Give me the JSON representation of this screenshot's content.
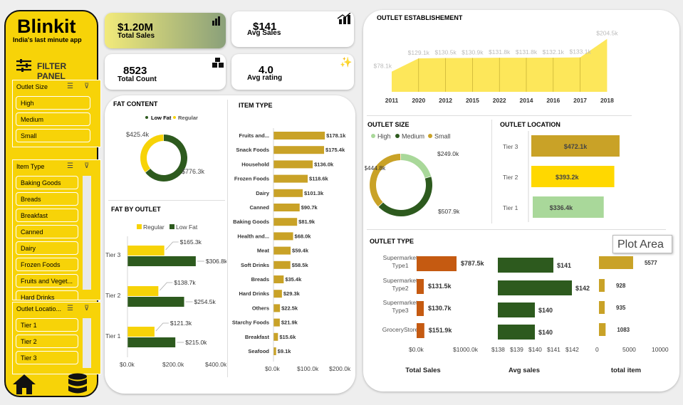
{
  "brand": {
    "name": "Blinkit",
    "tagline": "India's last minute app",
    "filter_panel": "FILTER PANEL"
  },
  "slicers": {
    "outlet_size": {
      "title": "Outlet Size",
      "items": [
        "High",
        "Medium",
        "Small"
      ]
    },
    "item_type": {
      "title": "Item Type",
      "items": [
        "Baking Goods",
        "Breads",
        "Breakfast",
        "Canned",
        "Dairy",
        "Frozen Foods",
        "Fruits and Veget...",
        "Hard Drinks"
      ]
    },
    "outlet_location": {
      "title": "Outlet Locatio...",
      "items": [
        "Tier 1",
        "Tier 2",
        "Tier 3"
      ]
    }
  },
  "kpis": {
    "total_sales": {
      "value": "$1.20M",
      "label": "Total Sales"
    },
    "avg_sales": {
      "value": "$141",
      "label": "Avg Sales"
    },
    "total_count": {
      "value": "8523",
      "label": "Total Count"
    },
    "avg_rating": {
      "value": "4.0",
      "label": "Avg rating"
    }
  },
  "tooltip": "Plot Area",
  "colors": {
    "yellow": "#f7d308",
    "dark_green": "#2d5a1e",
    "gold": "#c9a227",
    "orange": "#c55a11",
    "light_green": "#a9d89a",
    "bar_yellow": "#ffd800"
  },
  "chart_data": [
    {
      "id": "fat_content",
      "type": "pie",
      "title": "FAT CONTENT",
      "legend": [
        "Low Fat",
        "Regular"
      ],
      "values": [
        776.3,
        425.4
      ],
      "labels": [
        "$776.3k",
        "$425.4k"
      ]
    },
    {
      "id": "fat_by_outlet",
      "type": "bar",
      "title": "FAT BY OUTLET",
      "legend": [
        "Regular",
        "Low Fat"
      ],
      "categories": [
        "Tier 3",
        "Tier 2",
        "Tier 1"
      ],
      "series": [
        {
          "name": "Regular",
          "values": [
            165.3,
            138.7,
            121.3
          ],
          "labels": [
            "$165.3k",
            "$138.7k",
            "$121.3k"
          ]
        },
        {
          "name": "Low Fat",
          "values": [
            306.8,
            254.5,
            215.0
          ],
          "labels": [
            "$306.8k",
            "$254.5k",
            "$215.0k"
          ]
        }
      ],
      "ticks": [
        "$0.0k",
        "$200.0k",
        "$400.0k"
      ],
      "xlim": [
        0,
        400
      ]
    },
    {
      "id": "item_type",
      "type": "bar",
      "title": "ITEM TYPE",
      "categories": [
        "Fruits and...",
        "Snack Foods",
        "Household",
        "Frozen Foods",
        "Dairy",
        "Canned",
        "Baking Goods",
        "Health and...",
        "Meat",
        "Soft Drinks",
        "Breads",
        "Hard Drinks",
        "Others",
        "Starchy Foods",
        "Breakfast",
        "Seafood"
      ],
      "values": [
        178.1,
        175.4,
        136.0,
        118.6,
        101.3,
        90.7,
        81.9,
        68.0,
        59.4,
        58.5,
        35.4,
        29.3,
        22.5,
        21.9,
        15.6,
        9.1
      ],
      "labels": [
        "$178.1k",
        "$175.4k",
        "$136.0k",
        "$118.6k",
        "$101.3k",
        "$90.7k",
        "$81.9k",
        "$68.0k",
        "$59.4k",
        "$58.5k",
        "$35.4k",
        "$29.3k",
        "$22.5k",
        "$21.9k",
        "$15.6k",
        "$9.1k"
      ],
      "ticks": [
        "$0.0k",
        "$100.0k",
        "$200.0k"
      ],
      "xlim": [
        0,
        200
      ]
    },
    {
      "id": "outlet_establishment",
      "type": "area",
      "title": "OUTLET ESTABLISHEMENT",
      "x": [
        "2011",
        "2020",
        "2012",
        "2015",
        "2022",
        "2014",
        "2016",
        "2017",
        "2018"
      ],
      "values": [
        78.1,
        129.1,
        130.5,
        130.9,
        131.8,
        131.8,
        132.1,
        133.1,
        204.5
      ],
      "labels": [
        "$78.1k",
        "$129.1k",
        "$130.5k",
        "$130.9k",
        "$131.8k",
        "$131.8k",
        "$132.1k",
        "$133.1k",
        "$204.5k"
      ],
      "ylim": [
        0,
        220
      ]
    },
    {
      "id": "outlet_size",
      "type": "pie",
      "title": "OUTLET SIZE",
      "legend": [
        "High",
        "Medium",
        "Small"
      ],
      "values": [
        249.0,
        507.9,
        444.8
      ],
      "labels": [
        "$249.0k",
        "$507.9k",
        "$444.8k"
      ]
    },
    {
      "id": "outlet_location",
      "type": "bar",
      "title": "OUTLET LOCATION",
      "categories": [
        "Tier 3",
        "Tier 2",
        "Tier 1"
      ],
      "values": [
        472.1,
        393.2,
        336.4
      ],
      "labels": [
        "$472.1k",
        "$393.2k",
        "$336.4k"
      ],
      "xlim": [
        0,
        500
      ]
    },
    {
      "id": "outlet_type_sales",
      "type": "bar",
      "title": "OUTLET TYPE",
      "xlabel": "Total Sales",
      "categories": [
        "Supermarket Type1",
        "Supermarket Type2",
        "Supermarket Type3",
        "GroceryStore"
      ],
      "values": [
        787.5,
        131.5,
        130.7,
        151.9
      ],
      "labels": [
        "$787.5k",
        "$131.5k",
        "$130.7k",
        "$151.9k"
      ],
      "ticks": [
        "$0.0k",
        "$1000.0k"
      ],
      "xlim": [
        0,
        1000
      ]
    },
    {
      "id": "outlet_type_avg",
      "type": "bar",
      "xlabel": "Avg sales",
      "values": [
        141,
        142,
        140,
        140
      ],
      "labels": [
        "$141",
        "$142",
        "$140",
        "$140"
      ],
      "ticks": [
        "$138",
        "$139",
        "$140",
        "$141",
        "$142"
      ],
      "xlim": [
        138,
        142
      ]
    },
    {
      "id": "outlet_type_items",
      "type": "bar",
      "xlabel": "total item",
      "values": [
        5577,
        928,
        935,
        1083
      ],
      "labels": [
        "5577",
        "928",
        "935",
        "1083"
      ],
      "ticks": [
        "0",
        "5000",
        "10000"
      ],
      "xlim": [
        0,
        10000
      ]
    }
  ]
}
